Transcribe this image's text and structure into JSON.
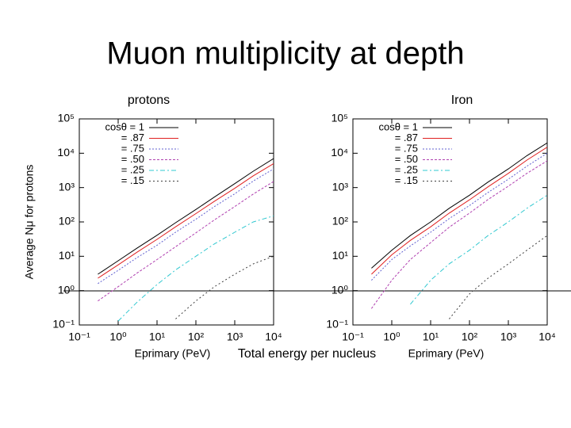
{
  "title": "Muon multiplicity at depth",
  "caption": "Total energy per nucleus",
  "chart_data": [
    {
      "type": "line",
      "title": "protons",
      "xlabel": "Eprimary (PeV)",
      "ylabel": "Average Nμ for protons",
      "xscale": "log",
      "yscale": "log",
      "x": [
        0.3,
        1,
        3,
        10,
        30,
        100,
        300,
        1000,
        3000,
        10000
      ],
      "series": [
        {
          "name": "cosθ = 1",
          "color": "#000000",
          "dash": "none",
          "values": [
            3,
            7.4,
            17,
            41,
            95,
            230,
            530,
            1300,
            3000,
            7000
          ]
        },
        {
          "name": "= .87",
          "color": "#e02020",
          "dash": "none",
          "values": [
            2.3,
            5.6,
            13,
            31,
            72,
            175,
            400,
            950,
            2200,
            5000
          ]
        },
        {
          "name": "= .75",
          "color": "#6060d0",
          "dash": "2 2",
          "values": [
            1.6,
            3.9,
            9,
            21,
            50,
            120,
            280,
            660,
            1550,
            3500
          ]
        },
        {
          "name": "= .50",
          "color": "#b040b0",
          "dash": "3 2",
          "values": [
            0.5,
            1.3,
            3.2,
            8,
            19,
            48,
            115,
            280,
            650,
            1500
          ]
        },
        {
          "name": "= .25",
          "color": "#30c8d0",
          "dash": "6 3 2 3",
          "values": [
            null,
            0.13,
            0.45,
            1.5,
            4,
            10,
            23,
            50,
            100,
            150
          ]
        },
        {
          "name": "= .15",
          "color": "#404040",
          "dash": "2 3",
          "values": [
            null,
            null,
            null,
            null,
            0.15,
            0.5,
            1.3,
            3,
            6,
            10
          ]
        }
      ],
      "xlim": [
        0.1,
        10000
      ],
      "ylim": [
        0.1,
        100000
      ],
      "xticks": [
        {
          "value": 0.1,
          "label": "10⁻¹"
        },
        {
          "value": 1,
          "label": "10⁰"
        },
        {
          "value": 10,
          "label": "10¹"
        },
        {
          "value": 100,
          "label": "10²"
        },
        {
          "value": 1000,
          "label": "10³"
        },
        {
          "value": 10000,
          "label": "10⁴"
        }
      ],
      "yticks": [
        {
          "value": 0.1,
          "label": "10⁻¹"
        },
        {
          "value": 1,
          "label": "10⁰"
        },
        {
          "value": 10,
          "label": "10¹"
        },
        {
          "value": 100,
          "label": "10²"
        },
        {
          "value": 1000,
          "label": "10³"
        },
        {
          "value": 10000,
          "label": "10⁴"
        },
        {
          "value": 100000,
          "label": "10⁵"
        }
      ]
    },
    {
      "type": "line",
      "title": "Iron",
      "xlabel": "Eprimary (PeV)",
      "xscale": "log",
      "yscale": "log",
      "x": [
        0.3,
        1,
        3,
        10,
        30,
        100,
        300,
        1000,
        3000,
        10000
      ],
      "series": [
        {
          "name": "cosθ = 1",
          "color": "#000000",
          "dash": "none",
          "values": [
            4.5,
            15,
            40,
            100,
            250,
            600,
            1450,
            3500,
            8500,
            20000
          ]
        },
        {
          "name": "= .87",
          "color": "#e02020",
          "dash": "none",
          "values": [
            3,
            11,
            29,
            72,
            180,
            440,
            1050,
            2600,
            6300,
            15000
          ]
        },
        {
          "name": "= .75",
          "color": "#6060d0",
          "dash": "2 2",
          "values": [
            2,
            8,
            20,
            50,
            125,
            300,
            720,
            1750,
            4200,
            10000
          ]
        },
        {
          "name": "= .50",
          "color": "#b040b0",
          "dash": "3 2",
          "values": [
            0.3,
            2,
            8,
            25,
            70,
            180,
            450,
            1100,
            2600,
            6000
          ]
        },
        {
          "name": "= .25",
          "color": "#30c8d0",
          "dash": "6 3 2 3",
          "values": [
            null,
            null,
            0.4,
            2,
            6,
            15,
            40,
            100,
            250,
            600
          ]
        },
        {
          "name": "= .15",
          "color": "#404040",
          "dash": "2 3",
          "values": [
            null,
            null,
            null,
            null,
            0.15,
            0.8,
            2.3,
            6,
            15,
            40
          ]
        }
      ],
      "xlim": [
        0.1,
        10000
      ],
      "ylim": [
        0.1,
        100000
      ],
      "xticks": [
        {
          "value": 0.1,
          "label": "10⁻¹"
        },
        {
          "value": 1,
          "label": "10⁰"
        },
        {
          "value": 10,
          "label": "10¹"
        },
        {
          "value": 100,
          "label": "10²"
        },
        {
          "value": 1000,
          "label": "10³"
        },
        {
          "value": 10000,
          "label": "10⁴"
        }
      ],
      "yticks": [
        {
          "value": 0.1,
          "label": "10⁻¹"
        },
        {
          "value": 1,
          "label": "10⁰"
        },
        {
          "value": 10,
          "label": "10¹"
        },
        {
          "value": 100,
          "label": "10²"
        },
        {
          "value": 1000,
          "label": "10³"
        },
        {
          "value": 10000,
          "label": "10⁴"
        },
        {
          "value": 100000,
          "label": "10⁵"
        }
      ]
    }
  ]
}
